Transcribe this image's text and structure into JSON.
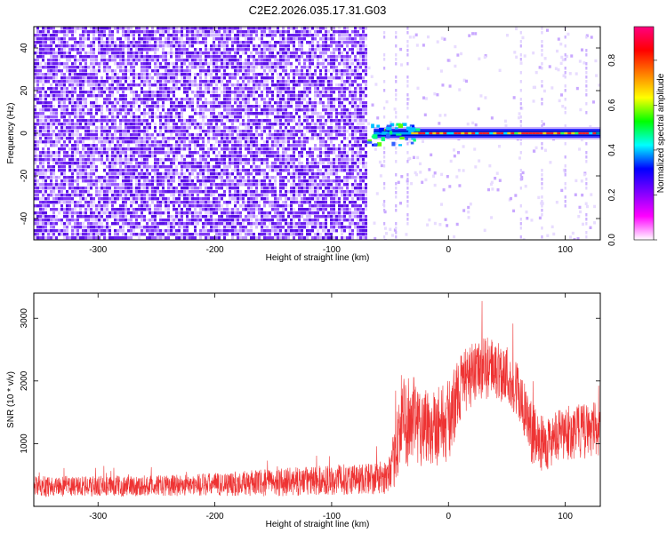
{
  "figure": {
    "title": "C2E2.2026.035.17.31.G03"
  },
  "chart_data": [
    {
      "type": "heatmap",
      "xlabel": "Height of straight line (km)",
      "ylabel": "Frequency (Hz)",
      "xlim": [
        -355,
        130
      ],
      "ylim": [
        -50,
        50
      ],
      "x_ticks": [
        -300,
        -200,
        -100,
        0,
        100
      ],
      "y_ticks": [
        -40,
        -20,
        0,
        20,
        40
      ],
      "grid": false,
      "noise_region_x": [
        -355,
        -70
      ],
      "carrier_start_x": -70,
      "carrier_frequency": 0,
      "vertical_streaks_x": [
        -55,
        -45,
        -35,
        62,
        80,
        100,
        118
      ],
      "colorbar": {
        "label": "Normalized spectral amplitude",
        "range": [
          0,
          0.95
        ],
        "ticks": [
          "0.0",
          "0.2",
          "0.4",
          "0.6",
          "0.8"
        ],
        "tick_values": [
          0,
          0.2,
          0.4,
          0.6,
          0.8
        ],
        "colormap": [
          "#ffffff",
          "#ff00ff",
          "#8000ff",
          "#0000ff",
          "#00ffff",
          "#00ff00",
          "#ffff00",
          "#ff8000",
          "#ff0000",
          "#ff0080"
        ]
      }
    },
    {
      "type": "line",
      "xlabel": "Height of straight line (km)",
      "ylabel": "SNR (10 * v/v)",
      "xlim": [
        -355,
        130
      ],
      "ylim": [
        0,
        3400
      ],
      "x_ticks": [
        -300,
        -200,
        -100,
        0,
        100
      ],
      "y_ticks": [
        1000,
        2000,
        3000
      ],
      "grid": false,
      "color": "#ee3333",
      "envelope": {
        "x": [
          -355,
          -300,
          -250,
          -200,
          -150,
          -100,
          -60,
          -50,
          -45,
          -40,
          -30,
          -20,
          -10,
          0,
          10,
          20,
          30,
          40,
          50,
          60,
          70,
          80,
          90,
          100,
          110,
          120,
          130
        ],
        "mean": [
          320,
          320,
          330,
          350,
          380,
          420,
          450,
          470,
          900,
          1400,
          1350,
          1300,
          1300,
          1350,
          1900,
          2100,
          2200,
          2200,
          2100,
          1800,
          1200,
          1000,
          1050,
          1150,
          1200,
          1200,
          1250
        ],
        "spread": [
          150,
          150,
          150,
          170,
          200,
          220,
          240,
          260,
          500,
          700,
          650,
          600,
          600,
          600,
          500,
          450,
          450,
          450,
          450,
          450,
          450,
          400,
          400,
          400,
          400,
          400,
          400
        ]
      }
    }
  ]
}
